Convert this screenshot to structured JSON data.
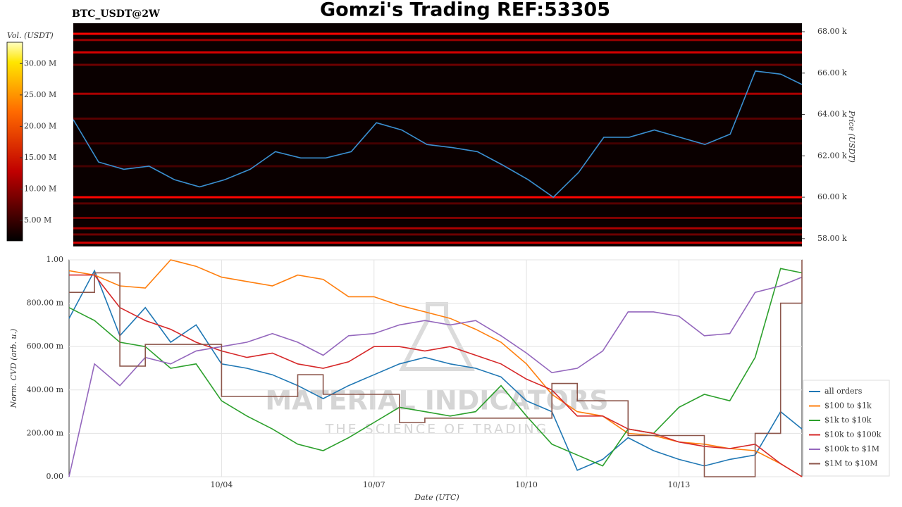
{
  "chart_data": [
    {
      "type": "heatmap",
      "title": "Gomzi's Trading REF:53305",
      "subtitle": "BTC_USDT@2W",
      "y_label": "Price (USDT)",
      "colorbar_label": "Vol. (USDT)",
      "xlim": [
        1,
        15.42
      ],
      "ylim": [
        57620,
        68410
      ],
      "yticks": [
        {
          "value": 58000,
          "label": "58.00 k"
        },
        {
          "value": 60000,
          "label": "60.00 k"
        },
        {
          "value": 62000,
          "label": "62.00 k"
        },
        {
          "value": 64000,
          "label": "64.00 k"
        },
        {
          "value": 66000,
          "label": "66.00 k"
        },
        {
          "value": 68000,
          "label": "68.00 k"
        }
      ],
      "clim": [
        1750000,
        33400000
      ],
      "cticks": [
        {
          "value": 5000000,
          "label": "5.00 M"
        },
        {
          "value": 10000000,
          "label": "10.00 M"
        },
        {
          "value": 15000000,
          "label": "15.00 M"
        },
        {
          "value": 20000000,
          "label": "20.00 M"
        },
        {
          "value": 25000000,
          "label": "25.00 M"
        },
        {
          "value": 30000000,
          "label": "30.00 M"
        }
      ],
      "bands": [
        {
          "price": 67900,
          "volume": 14000000
        },
        {
          "price": 67600,
          "volume": 9000000
        },
        {
          "price": 67000,
          "volume": 12000000
        },
        {
          "price": 66400,
          "volume": 7000000
        },
        {
          "price": 65000,
          "volume": 10000000
        },
        {
          "price": 63800,
          "volume": 6000000
        },
        {
          "price": 62600,
          "volume": 5000000
        },
        {
          "price": 61500,
          "volume": 5000000
        },
        {
          "price": 60000,
          "volume": 14000000
        },
        {
          "price": 59700,
          "volume": 6000000
        },
        {
          "price": 59000,
          "volume": 8000000
        },
        {
          "price": 58500,
          "volume": 10000000
        },
        {
          "price": 58200,
          "volume": 7000000
        },
        {
          "price": 57800,
          "volume": 12000000
        }
      ],
      "price": {
        "color": "#3a8fd0",
        "x": [
          1.0,
          1.5,
          2.0,
          2.5,
          3.0,
          3.5,
          4.0,
          4.5,
          5.0,
          5.5,
          6.0,
          6.5,
          7.0,
          7.5,
          8.0,
          8.5,
          9.0,
          9.5,
          10.0,
          10.5,
          11.0,
          11.5,
          12.0,
          12.5,
          13.0,
          13.5,
          14.0,
          14.5,
          15.0,
          15.42
        ],
        "values": [
          63750,
          61700,
          61350,
          61500,
          60850,
          60500,
          60850,
          61350,
          62200,
          61900,
          61900,
          62200,
          63600,
          63250,
          62550,
          62400,
          62200,
          61550,
          60850,
          60000,
          61200,
          62900,
          62900,
          63250,
          62900,
          62550,
          63050,
          66100,
          65950,
          65450
        ]
      }
    },
    {
      "type": "line",
      "x_label": "Date (UTC)",
      "y_label": "Norm. CVD (arb. u.)",
      "watermark": "MATERIAL INDICATORS",
      "watermark_sub": "THE SCIENCE OF TRADING",
      "grid": true,
      "legend": "lower right",
      "xlim": [
        1,
        15.42
      ],
      "ylim": [
        0,
        1
      ],
      "xticks": [
        {
          "value": 4,
          "label": "10/04"
        },
        {
          "value": 7,
          "label": "10/07"
        },
        {
          "value": 10,
          "label": "10/10"
        },
        {
          "value": 13,
          "label": "10/13"
        }
      ],
      "yticks": [
        {
          "value": 0,
          "label": "0.00"
        },
        {
          "value": 0.2,
          "label": "200.00 m"
        },
        {
          "value": 0.4,
          "label": "400.00 m"
        },
        {
          "value": 0.6,
          "label": "600.00 m"
        },
        {
          "value": 0.8,
          "label": "800.00 m"
        },
        {
          "value": 1,
          "label": "1.00"
        }
      ],
      "x": [
        1.0,
        1.5,
        2.0,
        2.5,
        3.0,
        3.5,
        4.0,
        4.5,
        5.0,
        5.5,
        6.0,
        6.5,
        7.0,
        7.5,
        8.0,
        8.5,
        9.0,
        9.5,
        10.0,
        10.5,
        11.0,
        11.5,
        12.0,
        12.5,
        13.0,
        13.5,
        14.0,
        14.5,
        15.0,
        15.42
      ],
      "series": [
        {
          "name": "all orders",
          "color": "#1f77b4",
          "values": [
            0.73,
            0.95,
            0.65,
            0.78,
            0.62,
            0.7,
            0.52,
            0.5,
            0.47,
            0.42,
            0.36,
            0.42,
            0.47,
            0.52,
            0.55,
            0.52,
            0.5,
            0.46,
            0.35,
            0.3,
            0.03,
            0.08,
            0.18,
            0.12,
            0.08,
            0.05,
            0.08,
            0.1,
            0.3,
            0.22
          ]
        },
        {
          "name": "$100 to $1k",
          "color": "#ff7f0e",
          "values": [
            0.95,
            0.93,
            0.88,
            0.87,
            1.0,
            0.97,
            0.92,
            0.9,
            0.88,
            0.93,
            0.91,
            0.83,
            0.83,
            0.79,
            0.76,
            0.73,
            0.68,
            0.62,
            0.52,
            0.38,
            0.3,
            0.28,
            0.2,
            0.19,
            0.16,
            0.15,
            0.13,
            0.12,
            0.06,
            0.0
          ]
        },
        {
          "name": "$1k to $10k",
          "color": "#2ca02c",
          "values": [
            0.78,
            0.72,
            0.62,
            0.6,
            0.5,
            0.52,
            0.35,
            0.28,
            0.22,
            0.15,
            0.12,
            0.18,
            0.25,
            0.32,
            0.3,
            0.28,
            0.3,
            0.42,
            0.28,
            0.15,
            0.1,
            0.05,
            0.22,
            0.2,
            0.32,
            0.38,
            0.35,
            0.55,
            0.96,
            0.94
          ]
        },
        {
          "name": "$10k to $100k",
          "color": "#d62728",
          "values": [
            0.93,
            0.93,
            0.78,
            0.72,
            0.68,
            0.62,
            0.58,
            0.55,
            0.57,
            0.52,
            0.5,
            0.53,
            0.6,
            0.6,
            0.58,
            0.6,
            0.56,
            0.52,
            0.45,
            0.4,
            0.28,
            0.28,
            0.22,
            0.2,
            0.16,
            0.14,
            0.13,
            0.15,
            0.06,
            0.0
          ]
        },
        {
          "name": "$100k to $1M",
          "color": "#9467bd",
          "values": [
            0.0,
            0.52,
            0.42,
            0.55,
            0.52,
            0.58,
            0.6,
            0.62,
            0.66,
            0.62,
            0.56,
            0.65,
            0.66,
            0.7,
            0.72,
            0.7,
            0.72,
            0.65,
            0.57,
            0.48,
            0.5,
            0.58,
            0.76,
            0.76,
            0.74,
            0.65,
            0.66,
            0.85,
            0.88,
            0.92
          ]
        },
        {
          "name": "$1M to $10M",
          "color": "#8c564b",
          "step": true,
          "values": [
            0.85,
            0.94,
            0.51,
            0.61,
            0.61,
            0.61,
            0.37,
            0.37,
            0.37,
            0.47,
            0.38,
            0.38,
            0.38,
            0.25,
            0.27,
            0.27,
            0.27,
            0.27,
            0.27,
            0.43,
            0.35,
            0.35,
            0.19,
            0.19,
            0.19,
            0.0,
            0.0,
            0.2,
            0.8,
            1.0
          ]
        }
      ]
    }
  ]
}
